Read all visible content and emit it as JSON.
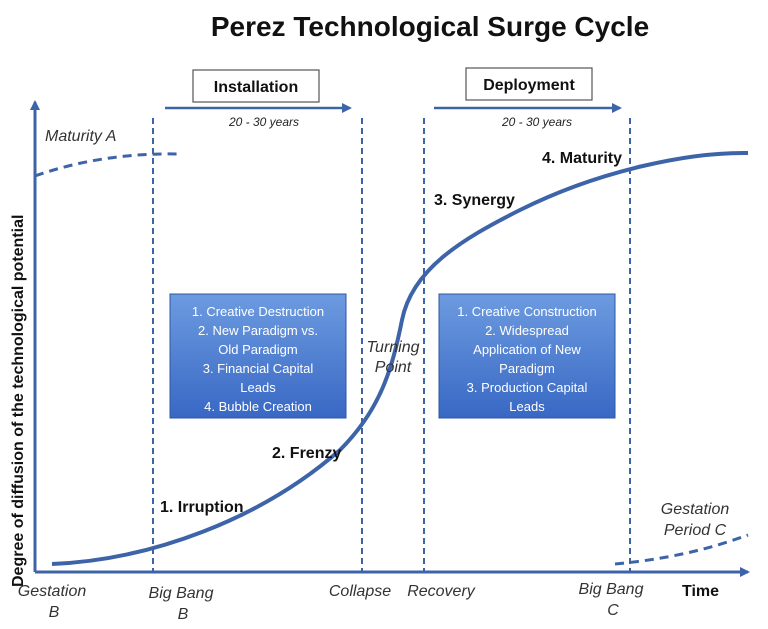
{
  "title": "Perez Technological Surge Cycle",
  "phases": {
    "installation": {
      "label": "Installation",
      "years": "20 - 30 years"
    },
    "deployment": {
      "label": "Deployment",
      "years": "20 - 30 years"
    }
  },
  "axes": {
    "y_label": "Degree of diffusion of the technological potential",
    "x_label": "Time"
  },
  "curve_labels": {
    "maturity_a": "Maturity A",
    "irruption": "1. Irruption",
    "frenzy": "2. Frenzy",
    "synergy": "3. Synergy",
    "maturity": "4. Maturity",
    "turning_point_1": "Turning",
    "turning_point_2": "Point",
    "gestation_c_1": "Gestation",
    "gestation_c_2": "Period C"
  },
  "x_labels": {
    "gestation_b_1": "Gestation",
    "gestation_b_2": "B",
    "big_bang_b_1": "Big Bang",
    "big_bang_b_2": "B",
    "collapse": "Collapse",
    "recovery": "Recovery",
    "big_bang_c_1": "Big Bang",
    "big_bang_c_2": "C"
  },
  "installation_box": {
    "lines": [
      "1. Creative Destruction",
      "2. New Paradigm vs.",
      "Old Paradigm",
      "3. Financial Capital",
      "Leads",
      "4. Bubble Creation"
    ]
  },
  "deployment_box": {
    "lines": [
      "1. Creative Construction",
      "2. Widespread",
      "Application of New",
      "Paradigm",
      "3. Production Capital",
      "Leads"
    ]
  },
  "colors": {
    "curve": "#3d64a8",
    "axis": "#3d64a8",
    "box_top": "#6d9be0",
    "box_bottom": "#3868c4"
  }
}
